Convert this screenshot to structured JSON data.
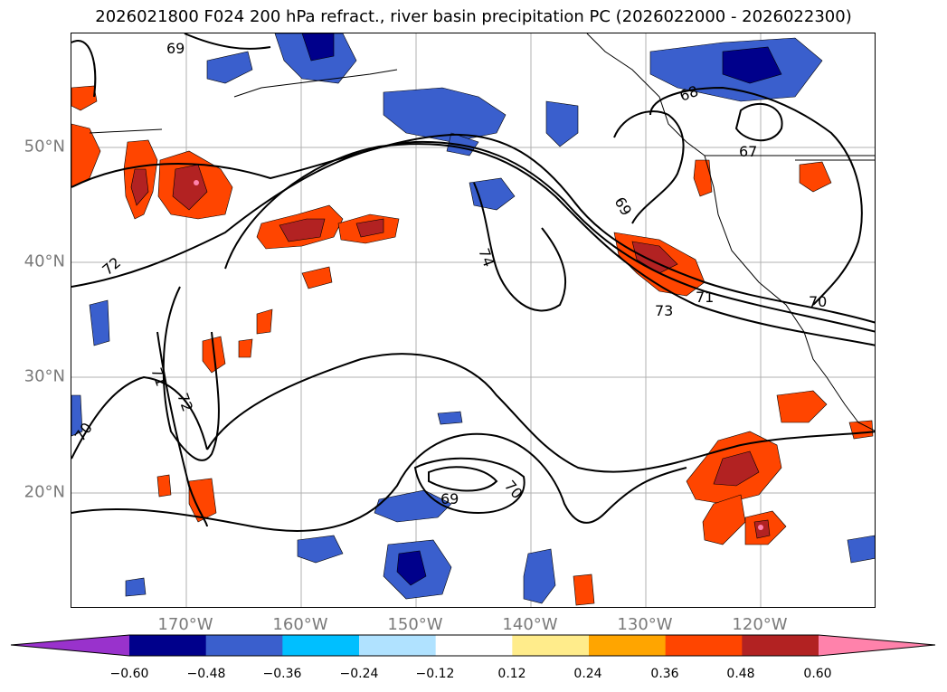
{
  "title": "2026021800 F024 200 hPa refract., river basin precipitation PC (2026022000 - 2026022300)",
  "map": {
    "lat_labels": [
      {
        "text": "50°N",
        "lat": 50
      },
      {
        "text": "40°N",
        "lat": 40
      },
      {
        "text": "30°N",
        "lat": 30
      },
      {
        "text": "20°N",
        "lat": 20
      }
    ],
    "lon_labels": [
      {
        "text": "170°W",
        "lon": -170
      },
      {
        "text": "160°W",
        "lon": -160
      },
      {
        "text": "150°W",
        "lon": -150
      },
      {
        "text": "140°W",
        "lon": -140
      },
      {
        "text": "130°W",
        "lon": -130
      },
      {
        "text": "120°W",
        "lon": -120
      }
    ],
    "extent": {
      "lon_min": -180,
      "lon_max": -110,
      "lat_min": 10,
      "lat_max": 60
    },
    "gridlines": true,
    "contour_labels": [
      "69",
      "72",
      "71",
      "72",
      "70",
      "74",
      "73",
      "71",
      "70",
      "69",
      "68",
      "67",
      "69",
      "70"
    ]
  },
  "colorbar": {
    "levels": [
      "−0.60",
      "−0.48",
      "−0.36",
      "−0.24",
      "−0.12",
      "0.12",
      "0.24",
      "0.36",
      "0.48",
      "0.60"
    ],
    "colors": [
      "#9932cc",
      "#00008b",
      "#3a5fcd",
      "#00bfff",
      "#b0e2ff",
      "#ffffff",
      "#ffec8b",
      "#ffa500",
      "#ff4500",
      "#b22222",
      "#ff82ab"
    ],
    "extend": "both"
  }
}
